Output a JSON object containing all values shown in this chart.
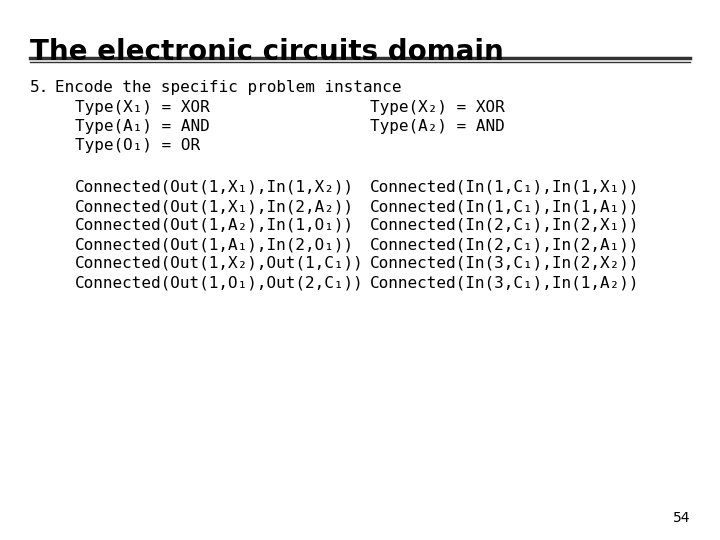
{
  "title": "The electronic circuits domain",
  "slide_number": "54",
  "background_color": "#ffffff",
  "title_color": "#000000",
  "title_fontsize": 20,
  "title_bold": true,
  "title_font": "DejaVu Sans",
  "body_font": "DejaVu Sans Mono",
  "body_fontsize": 11.5,
  "item_number": "5.",
  "item_text": "Encode the specific problem instance",
  "type_lines_left": [
    "Type(X₁) = XOR",
    "Type(A₁) = AND",
    "Type(O₁) = OR"
  ],
  "type_lines_right": [
    "Type(X₂) = XOR",
    "Type(A₂) = AND"
  ],
  "connected_left": [
    "Connected(Out(1,X₁),In(1,X₂))",
    "Connected(Out(1,X₁),In(2,A₂))",
    "Connected(Out(1,A₂),In(1,O₁))",
    "Connected(Out(1,A₁),In(2,O₁))",
    "Connected(Out(1,X₂),Out(1,C₁))",
    "Connected(Out(1,O₁),Out(2,C₁))"
  ],
  "connected_right": [
    "Connected(In(1,C₁),In(1,X₁))",
    "Connected(In(1,C₁),In(1,A₁))",
    "Connected(In(2,C₁),In(2,X₁))",
    "Connected(In(2,C₁),In(2,A₁))",
    "Connected(In(3,C₁),In(2,X₂))",
    "Connected(In(3,C₁),In(1,A₂))"
  ]
}
